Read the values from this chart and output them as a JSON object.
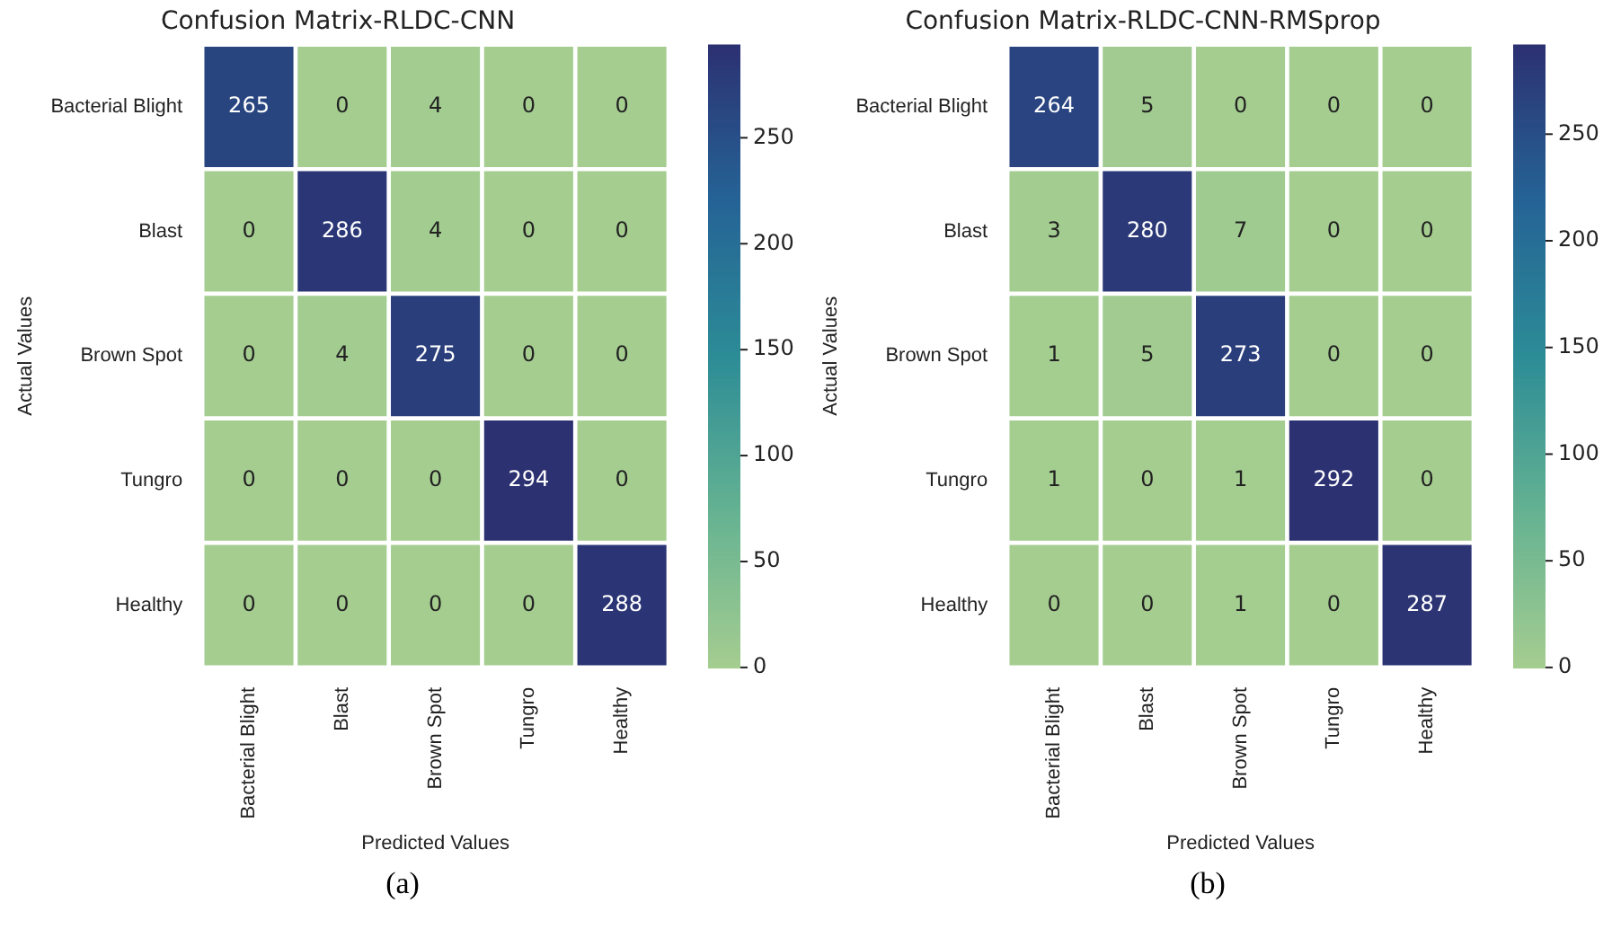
{
  "chart_data": [
    {
      "type": "heatmap",
      "title": "Confusion Matrix-RLDC-CNN",
      "xlabel": "Predicted Values",
      "ylabel": "Actual Values",
      "categories": [
        "Bacterial Blight",
        "Blast",
        "Brown Spot",
        "Tungro",
        "Healthy"
      ],
      "y_categories": [
        "Bacterial Blight",
        "Blast",
        "Brown Spot",
        "Tungro",
        "Healthy"
      ],
      "cells": [
        [
          265,
          0,
          4,
          0,
          0
        ],
        [
          0,
          286,
          4,
          0,
          0
        ],
        [
          0,
          4,
          275,
          0,
          0
        ],
        [
          0,
          0,
          0,
          294,
          0
        ],
        [
          0,
          0,
          0,
          0,
          288
        ]
      ],
      "clim": [
        0,
        294
      ],
      "cticks": [
        0,
        50,
        100,
        150,
        200,
        250
      ],
      "data_labels": true,
      "annotations": [
        "(a)"
      ]
    },
    {
      "type": "heatmap",
      "title": "Confusion Matrix-RLDC-CNN-RMSprop",
      "xlabel": "Predicted Values",
      "ylabel": "Actual Values",
      "categories": [
        "Bacterial Blight",
        "Blast",
        "Brown Spot",
        "Tungro",
        "Healthy"
      ],
      "y_categories": [
        "Bacterial Blight",
        "Blast",
        "Brown Spot",
        "Tungro",
        "Healthy"
      ],
      "cells": [
        [
          264,
          5,
          0,
          0,
          0
        ],
        [
          3,
          280,
          7,
          0,
          0
        ],
        [
          1,
          5,
          273,
          0,
          0
        ],
        [
          1,
          0,
          1,
          292,
          0
        ],
        [
          0,
          0,
          1,
          0,
          287
        ]
      ],
      "clim": [
        0,
        292
      ],
      "cticks": [
        0,
        50,
        100,
        150,
        200,
        250
      ],
      "data_labels": true,
      "annotations": [
        "(b)"
      ]
    }
  ]
}
